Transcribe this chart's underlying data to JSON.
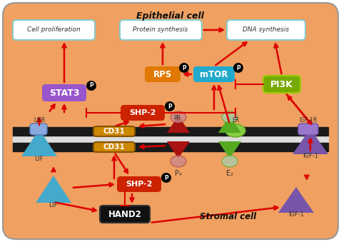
{
  "bg_color": "#F0A060",
  "epithelial_label": "Epithelial cell",
  "stromal_label": "Stromal cell",
  "box_titles": [
    "Cell proliferation",
    "Protein synthesis",
    "DNA synthesis"
  ]
}
